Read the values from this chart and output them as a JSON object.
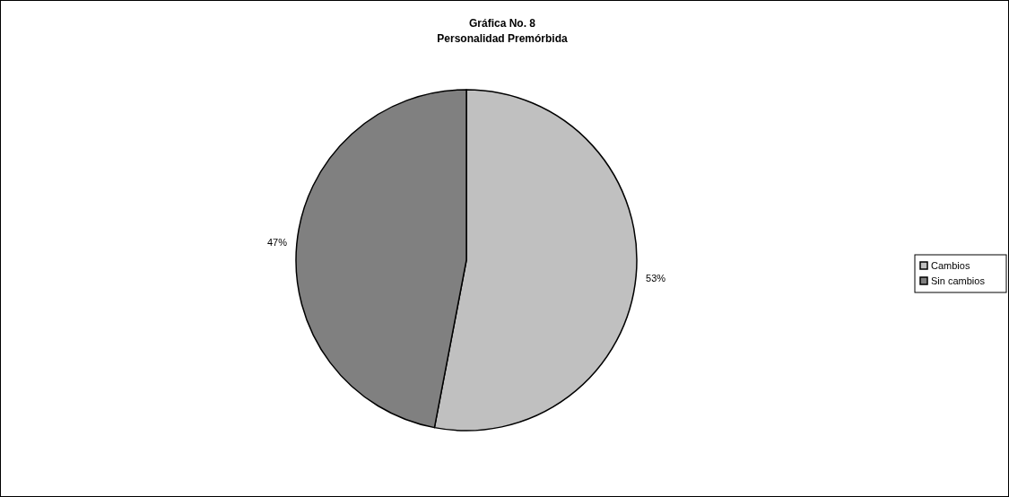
{
  "chart_data": {
    "type": "pie",
    "title": "Gráfica No. 8",
    "subtitle": "Personalidad Premórbida",
    "categories": [
      "Cambios",
      "Sin cambios"
    ],
    "values": [
      53,
      47
    ],
    "colors": [
      "#c0c0c0",
      "#808080"
    ],
    "value_labels": [
      "53%",
      "47%"
    ],
    "legend": "right"
  }
}
